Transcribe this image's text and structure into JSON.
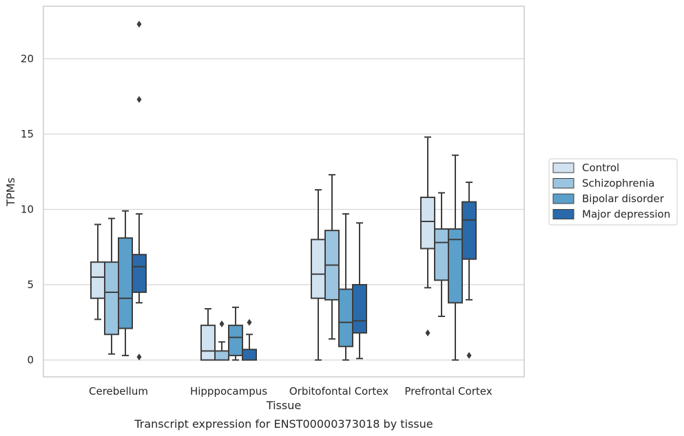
{
  "chart_data": {
    "type": "box",
    "caption": "Transcript expression for ENST00000373018 by tissue",
    "xlabel": "Tissue",
    "ylabel": "TPMs",
    "ylim": [
      -1.1,
      23.6
    ],
    "yticks": [
      0,
      5,
      10,
      15,
      20
    ],
    "grid": "horizontal",
    "legend_position": "right",
    "categories": [
      "Cerebellum",
      "Hipppocampus",
      "Orbitofontal Cortex",
      "Prefrontal Cortex"
    ],
    "series": [
      {
        "name": "Control",
        "color": "#d1e2f1",
        "boxes": [
          {
            "whislo": 2.7,
            "q1": 4.1,
            "med": 5.5,
            "q3": 6.5,
            "whishi": 9.0,
            "fliers": []
          },
          {
            "whislo": 0.0,
            "q1": 0.0,
            "med": 0.6,
            "q3": 2.3,
            "whishi": 3.4,
            "fliers": []
          },
          {
            "whislo": 0.0,
            "q1": 4.1,
            "med": 5.7,
            "q3": 8.0,
            "whishi": 11.3,
            "fliers": []
          },
          {
            "whislo": 4.8,
            "q1": 7.4,
            "med": 9.2,
            "q3": 10.8,
            "whishi": 14.8,
            "fliers": [
              1.8
            ]
          }
        ]
      },
      {
        "name": "Schizophrenia",
        "color": "#9ac4df",
        "boxes": [
          {
            "whislo": 0.4,
            "q1": 1.7,
            "med": 4.5,
            "q3": 6.5,
            "whishi": 9.4,
            "fliers": []
          },
          {
            "whislo": 0.0,
            "q1": 0.0,
            "med": 0.0,
            "q3": 0.6,
            "whishi": 1.2,
            "fliers": [
              2.4
            ]
          },
          {
            "whislo": 1.4,
            "q1": 4.0,
            "med": 6.3,
            "q3": 8.6,
            "whishi": 12.3,
            "fliers": []
          },
          {
            "whislo": 2.9,
            "q1": 5.3,
            "med": 7.8,
            "q3": 8.7,
            "whishi": 11.1,
            "fliers": []
          }
        ]
      },
      {
        "name": "Bipolar disorder",
        "color": "#5b9fcb",
        "boxes": [
          {
            "whislo": 0.3,
            "q1": 2.1,
            "med": 4.1,
            "q3": 8.1,
            "whishi": 9.9,
            "fliers": []
          },
          {
            "whislo": 0.0,
            "q1": 0.3,
            "med": 1.5,
            "q3": 2.3,
            "whishi": 3.5,
            "fliers": []
          },
          {
            "whislo": 0.0,
            "q1": 0.9,
            "med": 2.5,
            "q3": 4.7,
            "whishi": 9.7,
            "fliers": []
          },
          {
            "whislo": 0.0,
            "q1": 3.8,
            "med": 8.0,
            "q3": 8.7,
            "whishi": 13.6,
            "fliers": []
          }
        ]
      },
      {
        "name": "Major depression",
        "color": "#2a6aaa",
        "boxes": [
          {
            "whislo": 3.8,
            "q1": 4.5,
            "med": 6.2,
            "q3": 7.0,
            "whishi": 9.7,
            "fliers": [
              0.2,
              17.3,
              22.3
            ]
          },
          {
            "whislo": 0.0,
            "q1": 0.0,
            "med": 0.0,
            "q3": 0.7,
            "whishi": 1.7,
            "fliers": [
              2.5
            ]
          },
          {
            "whislo": 0.1,
            "q1": 1.8,
            "med": 2.6,
            "q3": 5.0,
            "whishi": 9.1,
            "fliers": []
          },
          {
            "whislo": 4.0,
            "q1": 6.7,
            "med": 9.3,
            "q3": 10.5,
            "whishi": 11.8,
            "fliers": [
              0.3
            ]
          }
        ]
      }
    ]
  }
}
